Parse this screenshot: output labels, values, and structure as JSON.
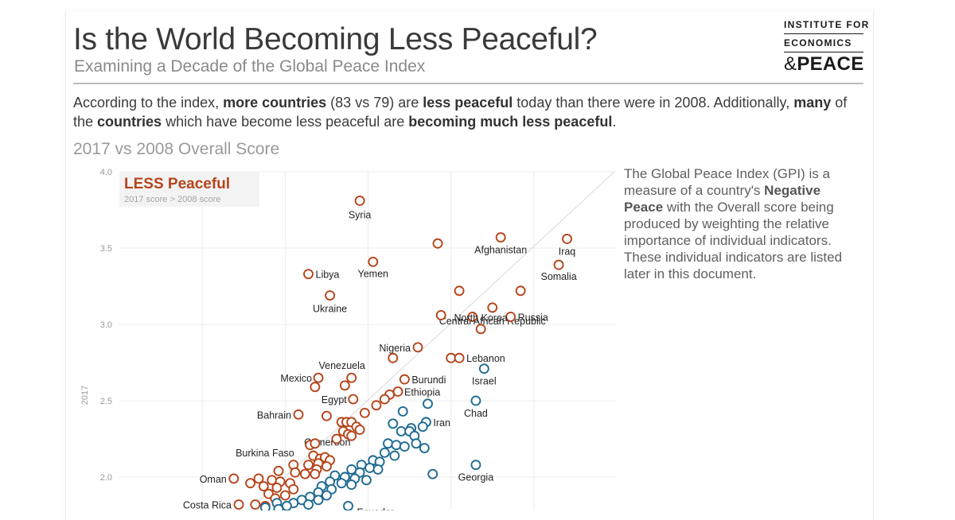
{
  "header": {
    "title": "Is the World Becoming Less Peaceful?",
    "subtitle": "Examining a Decade of the Global Peace Index"
  },
  "logo": {
    "line1": "INSTITUTE FOR",
    "line2": "ECONOMICS",
    "line3_amp": "&",
    "line3_word": "PEACE"
  },
  "intro": {
    "t1": "According to the index, ",
    "b1": "more countries",
    "t2": " (83 vs 79) are ",
    "b2": "less peaceful",
    "t3": " today than there were in 2008.  Additionally, ",
    "b3": "many",
    "t4": " of the ",
    "b4": "countries",
    "t5": " which have become less peaceful are ",
    "b5": "becoming much less peaceful",
    "t6": "."
  },
  "chart_heading": "2017 vs 2008 Overall Score",
  "side_note": {
    "t1": "The Global Peace Index (GPI) is a measure of a country's ",
    "b1": "Negative Peace",
    "t2": " with the Overall score being produced by weighting the relative importance of individual indicators. These individual indicators are listed later in this document."
  },
  "colors": {
    "less_peaceful": "#b5451b",
    "more_peaceful": "#1f6b93",
    "grid": "#ececec",
    "axis_text": "#9a9a9a"
  },
  "chart_data": {
    "type": "scatter",
    "xlabel": "",
    "ylabel": "2017",
    "ylim": [
      1.75,
      4.0
    ],
    "xlim": [
      1.0,
      4.0
    ],
    "y_ticks": [
      "4.0",
      "3.5",
      "3.0",
      "2.5",
      "2.0"
    ],
    "grid": true,
    "legend_box": {
      "title": "LESS Peaceful",
      "subtitle": "2017 score > 2008 score"
    },
    "series": [
      {
        "key": "less",
        "points": [
          {
            "x": 2.45,
            "y": 3.81,
            "label": "Syria"
          },
          {
            "x": 3.3,
            "y": 3.57,
            "label": "Afghanistan"
          },
          {
            "x": 3.7,
            "y": 3.56,
            "label": "Iraq"
          },
          {
            "x": 2.92,
            "y": 3.53
          },
          {
            "x": 2.53,
            "y": 3.41,
            "label": "Yemen"
          },
          {
            "x": 2.14,
            "y": 3.33,
            "label": "Libya"
          },
          {
            "x": 3.65,
            "y": 3.39,
            "label": "Somalia"
          },
          {
            "x": 3.05,
            "y": 3.22
          },
          {
            "x": 3.42,
            "y": 3.22
          },
          {
            "x": 2.27,
            "y": 3.19,
            "label": "Ukraine"
          },
          {
            "x": 3.25,
            "y": 3.11,
            "label": "Central African Republic"
          },
          {
            "x": 2.94,
            "y": 3.06
          },
          {
            "x": 3.13,
            "y": 3.05
          },
          {
            "x": 3.36,
            "y": 3.05,
            "label": "Russia"
          },
          {
            "x": 3.18,
            "y": 2.97,
            "label": "North Korea"
          },
          {
            "x": 2.8,
            "y": 2.85,
            "label": "Nigeria"
          },
          {
            "x": 2.65,
            "y": 2.78
          },
          {
            "x": 3.0,
            "y": 2.78
          },
          {
            "x": 3.05,
            "y": 2.78,
            "label": "Lebanon"
          },
          {
            "x": 2.2,
            "y": 2.65,
            "label": "Mexico"
          },
          {
            "x": 2.4,
            "y": 2.65,
            "label": "Venezuela"
          },
          {
            "x": 2.72,
            "y": 2.64,
            "label": "Burundi"
          },
          {
            "x": 2.36,
            "y": 2.6
          },
          {
            "x": 2.18,
            "y": 2.59
          },
          {
            "x": 2.68,
            "y": 2.56,
            "label": "Ethiopia"
          },
          {
            "x": 2.63,
            "y": 2.54
          },
          {
            "x": 2.41,
            "y": 2.51,
            "label": "Egypt"
          },
          {
            "x": 2.6,
            "y": 2.51
          },
          {
            "x": 2.55,
            "y": 2.47
          },
          {
            "x": 2.08,
            "y": 2.41,
            "label": "Bahrain"
          },
          {
            "x": 2.25,
            "y": 2.4
          },
          {
            "x": 2.48,
            "y": 2.42
          },
          {
            "x": 2.34,
            "y": 2.36
          },
          {
            "x": 2.37,
            "y": 2.36
          },
          {
            "x": 2.4,
            "y": 2.36
          },
          {
            "x": 2.43,
            "y": 2.33
          },
          {
            "x": 2.45,
            "y": 2.31
          },
          {
            "x": 2.35,
            "y": 2.3,
            "label": "Cameroon"
          },
          {
            "x": 2.38,
            "y": 2.28
          },
          {
            "x": 2.31,
            "y": 2.25
          },
          {
            "x": 2.4,
            "y": 2.27
          },
          {
            "x": 2.15,
            "y": 2.21
          },
          {
            "x": 2.18,
            "y": 2.22
          },
          {
            "x": 2.17,
            "y": 2.14,
            "label": "Burkina Faso"
          },
          {
            "x": 2.21,
            "y": 2.12
          },
          {
            "x": 2.24,
            "y": 2.13
          },
          {
            "x": 2.27,
            "y": 2.11
          },
          {
            "x": 2.05,
            "y": 2.08
          },
          {
            "x": 2.14,
            "y": 2.08
          },
          {
            "x": 2.2,
            "y": 2.09
          },
          {
            "x": 2.25,
            "y": 2.07
          },
          {
            "x": 2.19,
            "y": 2.05
          },
          {
            "x": 1.96,
            "y": 2.04
          },
          {
            "x": 2.06,
            "y": 2.03
          },
          {
            "x": 2.12,
            "y": 2.02
          },
          {
            "x": 2.18,
            "y": 2.02
          },
          {
            "x": 1.69,
            "y": 1.99,
            "label": "Oman"
          },
          {
            "x": 1.84,
            "y": 1.99
          },
          {
            "x": 1.92,
            "y": 1.98
          },
          {
            "x": 1.97,
            "y": 1.97
          },
          {
            "x": 2.03,
            "y": 1.96
          },
          {
            "x": 1.79,
            "y": 1.96
          },
          {
            "x": 1.87,
            "y": 1.94
          },
          {
            "x": 1.95,
            "y": 1.93
          },
          {
            "x": 2.05,
            "y": 1.92
          },
          {
            "x": 1.9,
            "y": 1.89
          },
          {
            "x": 2.0,
            "y": 1.88
          },
          {
            "x": 1.94,
            "y": 1.86
          },
          {
            "x": 1.72,
            "y": 1.82,
            "label": "Costa Rica"
          },
          {
            "x": 1.82,
            "y": 1.82
          },
          {
            "x": 1.88,
            "y": 1.81
          }
        ]
      },
      {
        "key": "more",
        "points": [
          {
            "x": 3.2,
            "y": 2.71,
            "label": "Israel"
          },
          {
            "x": 3.15,
            "y": 2.5,
            "label": "Chad"
          },
          {
            "x": 2.86,
            "y": 2.48
          },
          {
            "x": 2.71,
            "y": 2.43
          },
          {
            "x": 2.85,
            "y": 2.36,
            "label": "Iran"
          },
          {
            "x": 2.65,
            "y": 2.35
          },
          {
            "x": 2.7,
            "y": 2.3
          },
          {
            "x": 2.76,
            "y": 2.32
          },
          {
            "x": 2.83,
            "y": 2.33
          },
          {
            "x": 2.75,
            "y": 2.3
          },
          {
            "x": 2.78,
            "y": 2.27
          },
          {
            "x": 2.62,
            "y": 2.22
          },
          {
            "x": 2.67,
            "y": 2.21
          },
          {
            "x": 2.72,
            "y": 2.2
          },
          {
            "x": 2.79,
            "y": 2.22
          },
          {
            "x": 2.84,
            "y": 2.19
          },
          {
            "x": 2.6,
            "y": 2.16
          },
          {
            "x": 2.66,
            "y": 2.14
          },
          {
            "x": 2.53,
            "y": 2.11
          },
          {
            "x": 2.57,
            "y": 2.1
          },
          {
            "x": 3.15,
            "y": 2.08,
            "label": "Georgia"
          },
          {
            "x": 2.46,
            "y": 2.08
          },
          {
            "x": 2.51,
            "y": 2.06
          },
          {
            "x": 2.56,
            "y": 2.05
          },
          {
            "x": 2.4,
            "y": 2.05
          },
          {
            "x": 2.45,
            "y": 2.03
          },
          {
            "x": 2.89,
            "y": 2.02
          },
          {
            "x": 2.3,
            "y": 2.01
          },
          {
            "x": 2.36,
            "y": 2.0
          },
          {
            "x": 2.42,
            "y": 1.99
          },
          {
            "x": 2.49,
            "y": 1.98
          },
          {
            "x": 2.27,
            "y": 1.97
          },
          {
            "x": 2.34,
            "y": 1.96
          },
          {
            "x": 2.4,
            "y": 1.95
          },
          {
            "x": 2.22,
            "y": 1.94
          },
          {
            "x": 2.28,
            "y": 1.92
          },
          {
            "x": 2.2,
            "y": 1.9
          },
          {
            "x": 2.25,
            "y": 1.88
          },
          {
            "x": 2.15,
            "y": 1.87
          },
          {
            "x": 2.2,
            "y": 1.85
          },
          {
            "x": 2.1,
            "y": 1.85
          },
          {
            "x": 2.05,
            "y": 1.83
          },
          {
            "x": 2.14,
            "y": 1.82
          },
          {
            "x": 1.95,
            "y": 1.83
          },
          {
            "x": 2.01,
            "y": 1.81
          },
          {
            "x": 2.38,
            "y": 1.81,
            "label": "Ecuador"
          },
          {
            "x": 1.88,
            "y": 1.8
          },
          {
            "x": 1.96,
            "y": 1.79
          }
        ]
      }
    ]
  }
}
